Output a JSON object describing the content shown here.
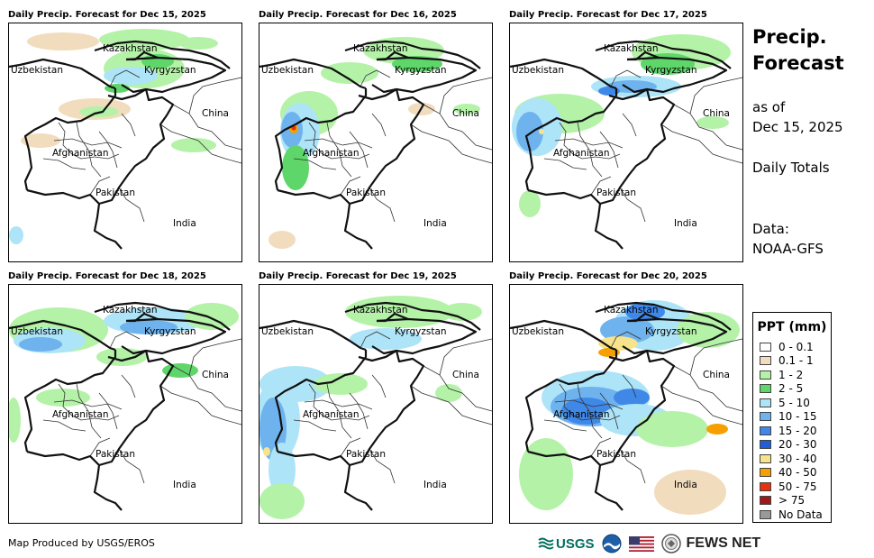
{
  "panels": [
    {
      "title": "Daily Precip. Forecast for Dec 15, 2025",
      "scene": 0
    },
    {
      "title": "Daily Precip. Forecast for Dec 16, 2025",
      "scene": 1
    },
    {
      "title": "Daily Precip. Forecast for Dec 17, 2025",
      "scene": 2
    },
    {
      "title": "Daily Precip. Forecast for Dec 18, 2025",
      "scene": 3
    },
    {
      "title": "Daily Precip. Forecast for Dec 19, 2025",
      "scene": 4
    },
    {
      "title": "Daily Precip. Forecast for Dec 20, 2025",
      "scene": 5
    }
  ],
  "map_labels": {
    "kazakhstan": "Kazakhstan",
    "uzbekistan": "Uzbekistan",
    "kyrgyzstan": "Kyrgyzstan",
    "china": "China",
    "afghanistan": "Afghanistan",
    "pakistan": "Pakistan",
    "india": "India"
  },
  "side": {
    "title_line1": "Precip.",
    "title_line2": "Forecast",
    "asof_line1": "as of",
    "asof_line2": "Dec 15, 2025",
    "totals": "Daily Totals",
    "data_line1": "Data:",
    "data_line2": "NOAA-GFS"
  },
  "legend": {
    "title": "PPT (mm)",
    "entries": [
      {
        "label": "0 - 0.1",
        "color": "#ffffff"
      },
      {
        "label": "0.1 - 1",
        "color": "#f2dcbe"
      },
      {
        "label": "1 - 2",
        "color": "#b4f2a8"
      },
      {
        "label": "2 - 5",
        "color": "#5fd66a"
      },
      {
        "label": "5 - 10",
        "color": "#aee4f8"
      },
      {
        "label": "10 - 15",
        "color": "#6fb3ee"
      },
      {
        "label": "15 - 20",
        "color": "#3f88e8"
      },
      {
        "label": "20 - 30",
        "color": "#1f5ed8"
      },
      {
        "label": "30 - 40",
        "color": "#f7e38c"
      },
      {
        "label": "40 - 50",
        "color": "#f5a000"
      },
      {
        "label": "50 - 75",
        "color": "#e83010"
      },
      {
        "label": "> 75",
        "color": "#a01818"
      },
      {
        "label": "No Data",
        "color": "#999999"
      }
    ]
  },
  "footer": {
    "credit": "Map Produced by USGS/EROS",
    "usgs": "USGS",
    "fews": "FEWS NET"
  }
}
